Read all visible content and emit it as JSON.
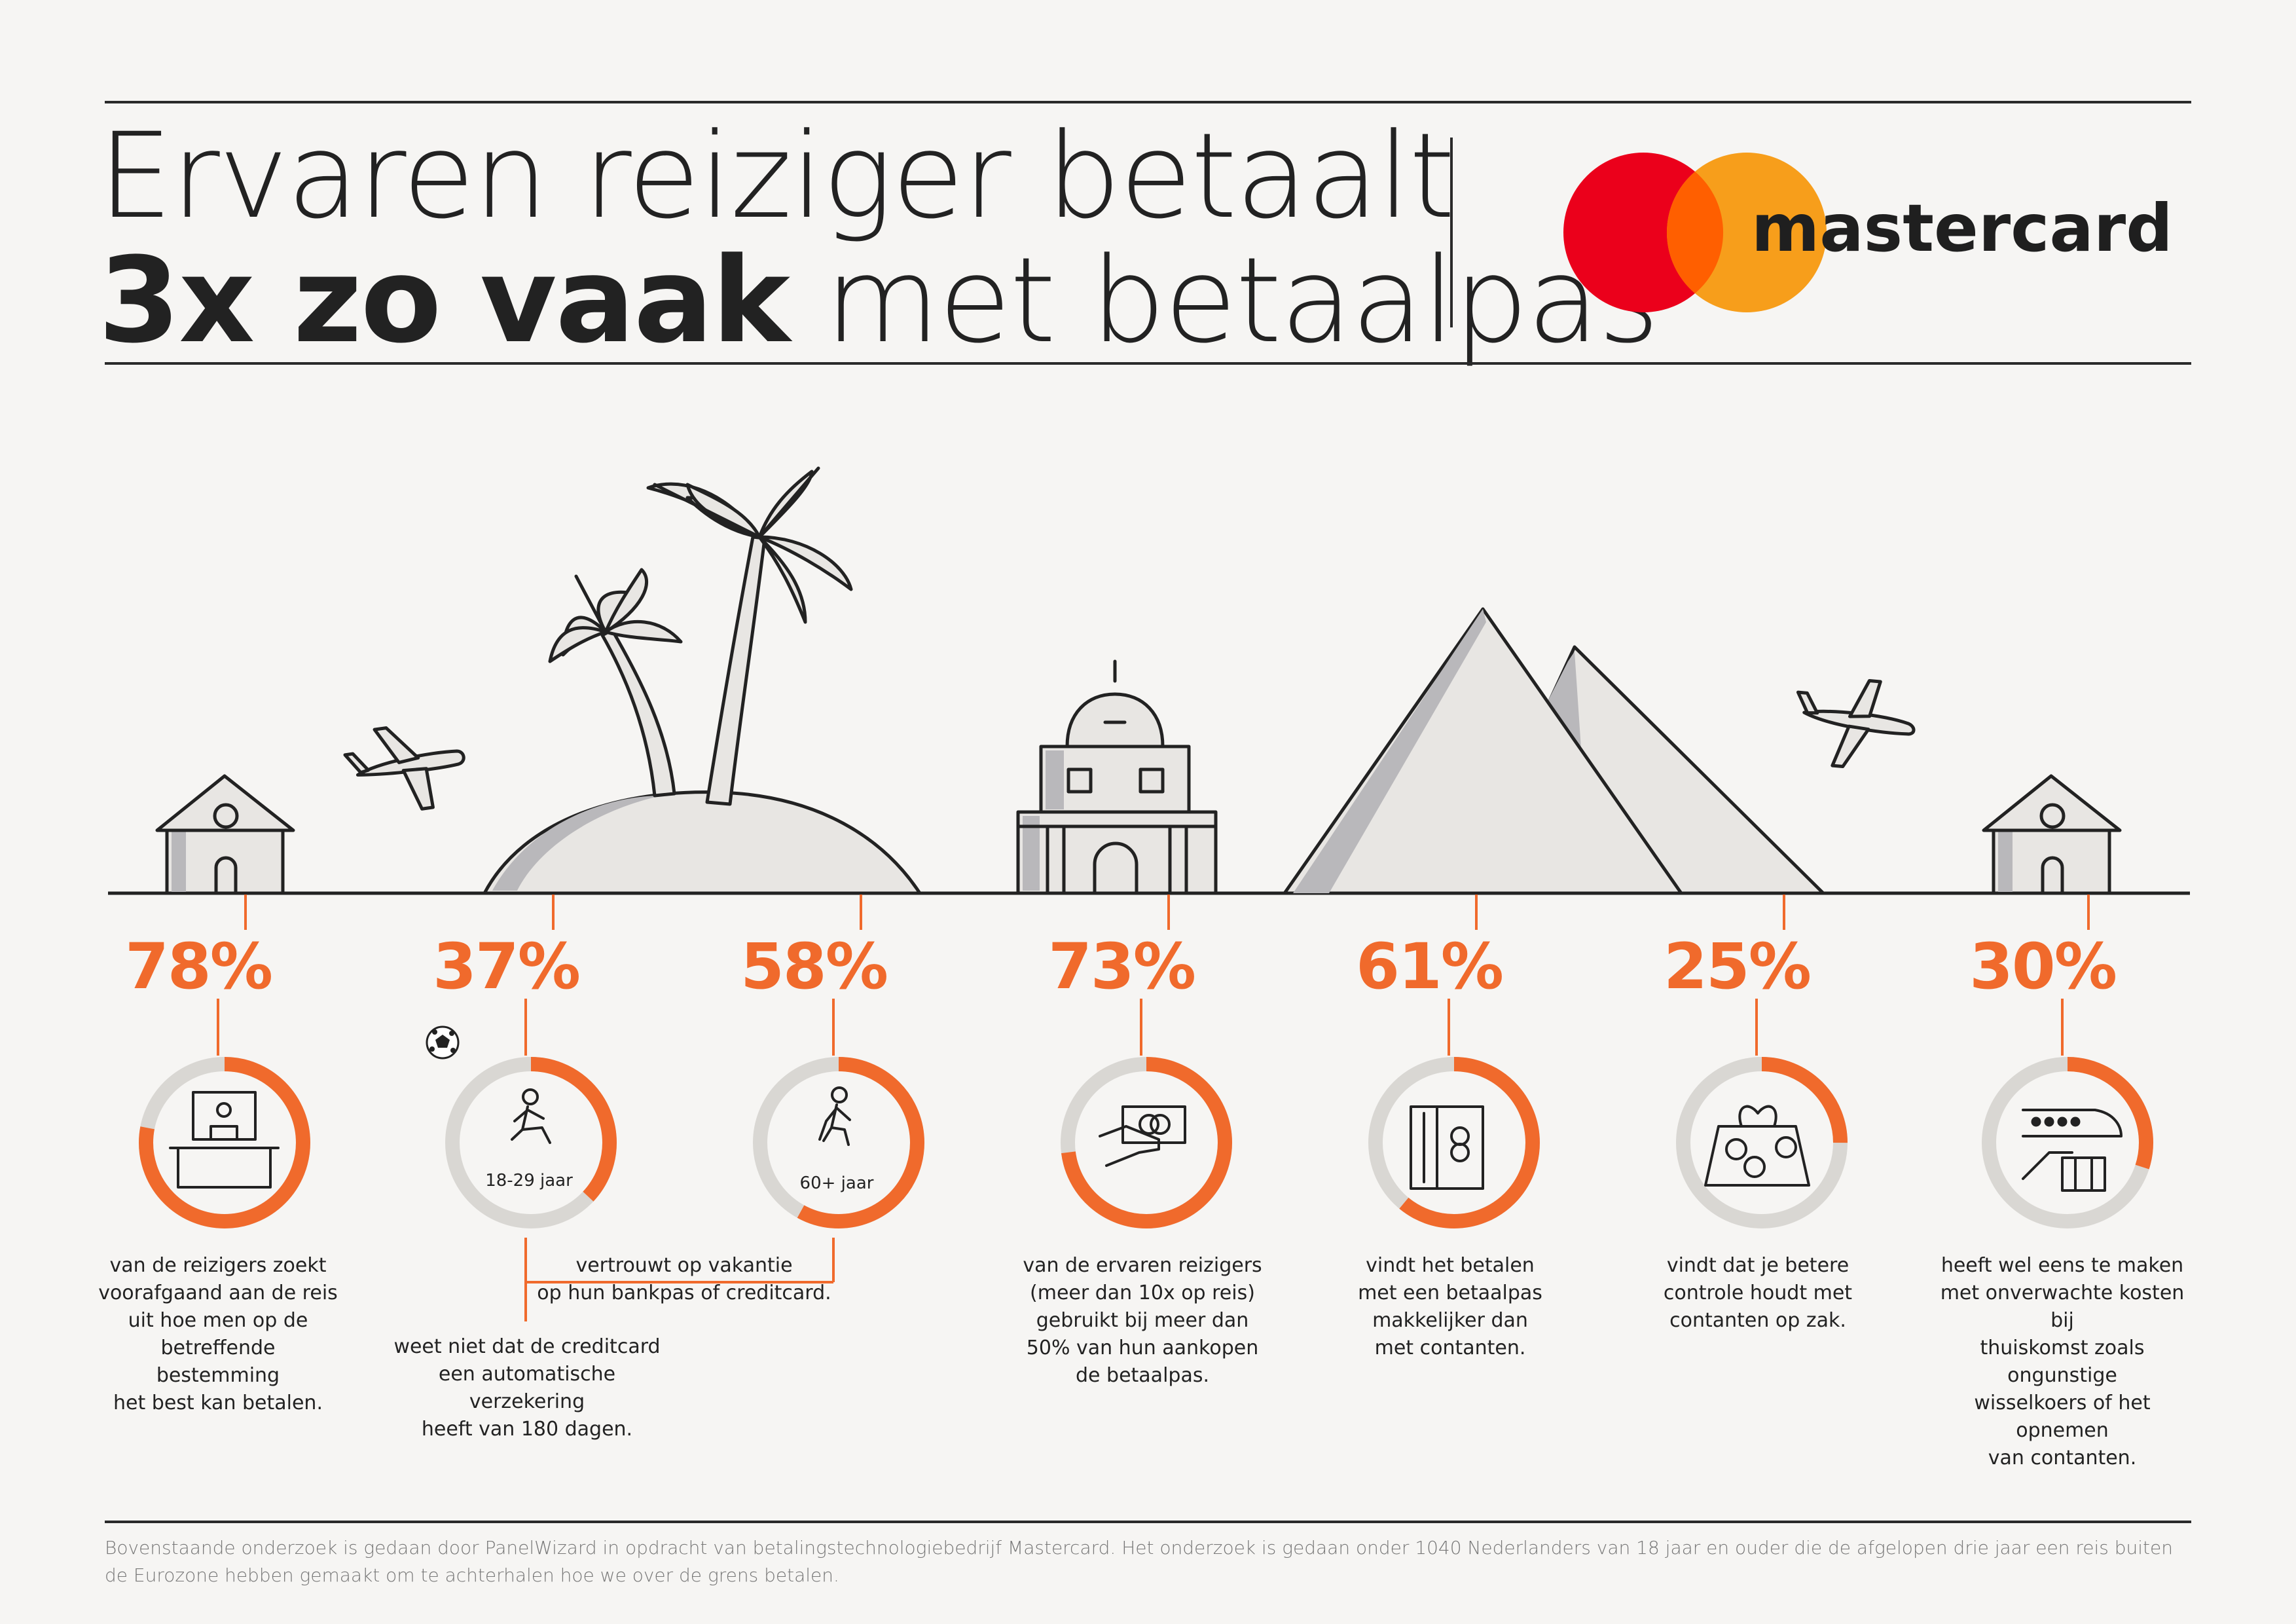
{
  "title": {
    "line1": "Ervaren reiziger betaalt",
    "line2_bold": "3x zo vaak",
    "line2_rest": " met betaalpas"
  },
  "brand": {
    "name": "mastercard",
    "colors": {
      "red": "#eb001b",
      "orange": "#f79e1b",
      "overlap": "#ff5f00"
    }
  },
  "accent_color": "#f06a2c",
  "stats": [
    {
      "id": "s1",
      "percent": "78%",
      "fraction": 0.78,
      "icon": "laptop-person-icon",
      "description": [
        "van de reizigers zoekt",
        "voorafgaand aan de reis",
        "uit hoe men op de",
        "betreffende bestemming",
        "het best kan betalen."
      ]
    },
    {
      "id": "s2",
      "percent": "37%",
      "fraction": 0.37,
      "icon": "walking-person-icon",
      "ring_label": "18-29 jaar",
      "description": [
        "weet niet dat de creditcard",
        "een automatische verzekering",
        "heeft van 180 dagen."
      ]
    },
    {
      "id": "s3",
      "percent": "58%",
      "fraction": 0.58,
      "icon": "walking-person-icon",
      "ring_label": "60+ jaar",
      "description": [
        "vertrouwt op vakantie",
        "op hun bankpas of creditcard."
      ]
    },
    {
      "id": "s4",
      "percent": "73%",
      "fraction": 0.73,
      "icon": "hand-with-card-icon",
      "description": [
        "van de ervaren reizigers",
        "(meer dan 10x op reis)",
        "gebruikt bij meer dan",
        "50% van hun aankopen",
        "de betaalpas."
      ]
    },
    {
      "id": "s5",
      "percent": "61%",
      "fraction": 0.61,
      "icon": "card-terminal-icon",
      "description": [
        "vindt het betalen",
        "met een betaalpas",
        "makkelijker dan",
        "met contanten."
      ]
    },
    {
      "id": "s6",
      "percent": "25%",
      "fraction": 0.25,
      "icon": "coin-purse-icon",
      "description": [
        "vindt dat je betere",
        "controle houdt met",
        "contanten op zak."
      ]
    },
    {
      "id": "s7",
      "percent": "30%",
      "fraction": 0.3,
      "icon": "train-luggage-icon",
      "description": [
        "heeft wel eens te maken",
        "met onverwachte kosten bij",
        "thuiskomst zoals ongunstige",
        "wisselkoers of het opnemen",
        "van contanten."
      ]
    }
  ],
  "footer": "Bovenstaande onderzoek is gedaan door PanelWizard in opdracht van betalingstechnologiebedrijf Mastercard. Het onderzoek is gedaan onder 1040 Nederlanders van 18 jaar en ouder die de afgelopen drie jaar een reis buiten de Eurozone hebben gemaakt om te achterhalen hoe we over de grens betalen."
}
